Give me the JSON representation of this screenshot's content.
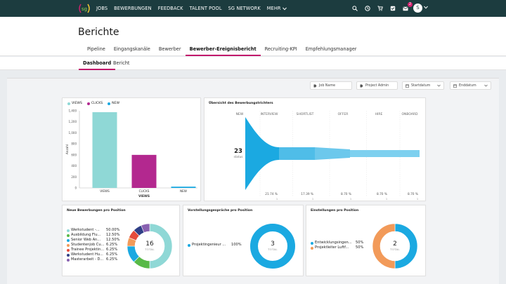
{
  "nav": {
    "links": [
      "JOBS",
      "BEWERBUNGEN",
      "FEEDBACK",
      "TALENT POOL",
      "SG NETWORK",
      "MEHR"
    ],
    "notification_count": "2",
    "avatar_initial": "S"
  },
  "page": {
    "title": "Berichte",
    "tabs": [
      "Pipeline",
      "Eingangskanäle",
      "Bewerber",
      "Bewerber-Ereignisbericht",
      "Recruiting-KPI",
      "Empfehlungsmanager"
    ],
    "active_tab": 3,
    "subtabs": [
      "Dashboard",
      "Bericht"
    ],
    "active_subtab": 0
  },
  "filters": {
    "job_name": "Job Name",
    "project_admin": "Project Admin",
    "start_date": "Startdatum",
    "end_date": "Enddatum"
  },
  "colors": {
    "teal_light": "#8fd8d6",
    "magenta": "#b3288f",
    "cyan": "#1ba9e1",
    "green": "#58b947",
    "orange": "#f29a59",
    "navy": "#2f3f86",
    "red": "#e54b3c",
    "purple": "#8860b0",
    "accent": "#c2186b"
  },
  "chart_data": [
    {
      "type": "bar",
      "title": "",
      "categories": [
        "VIEWS",
        "CLICKS",
        "NEW"
      ],
      "values": [
        1375,
        600,
        23
      ],
      "series_legend": [
        "VIEWS",
        "CLICKS",
        "NEW"
      ],
      "xlabel": "VIEWS",
      "ylabel": "Anzahl",
      "ylim": [
        0,
        1400
      ],
      "yticks": [
        "0",
        "200",
        "400",
        "600",
        "800",
        "1,000",
        "1,200",
        "1,400"
      ],
      "grid": false
    },
    {
      "type": "funnel",
      "title": "Übersicht des Bewerbungstrichters",
      "stages": [
        "NEW",
        "INTERVIEW",
        "SHORTLIST",
        "OFFER",
        "HIRE",
        "ONBOARD"
      ],
      "conversion_labels": [
        "21.74 %",
        "17.39 %",
        "8.70 %",
        "8.70 %",
        "8.70 %"
      ],
      "counts_below": [
        "1",
        "1",
        "1",
        "1",
        "1"
      ],
      "total": "23",
      "total_label": "status"
    },
    {
      "type": "pie",
      "title": "Neue Bewerbungen pro Position",
      "total": "16",
      "total_label": "TOTAL",
      "slices": [
        {
          "label": "Werkstudent -...",
          "value": 50.0,
          "pct": "50.00%"
        },
        {
          "label": "Ausbildung Flu...",
          "value": 12.5,
          "pct": "12.50%"
        },
        {
          "label": "Senior Web An...",
          "value": 12.5,
          "pct": "12.50%"
        },
        {
          "label": "Studentenjob Cu...",
          "value": 6.25,
          "pct": "6.25%"
        },
        {
          "label": "Trainee Projektin...",
          "value": 6.25,
          "pct": "6.25%"
        },
        {
          "label": "Werkstudent Hu...",
          "value": 6.25,
          "pct": "6.25%"
        },
        {
          "label": "Masterarbeit - D...",
          "value": 6.25,
          "pct": "6.25%"
        }
      ]
    },
    {
      "type": "pie",
      "title": "Vorstellungsgespräche pro Position",
      "total": "3",
      "total_label": "TOTAL",
      "slices": [
        {
          "label": "Projektingenieur ...",
          "value": 100,
          "pct": "100%"
        }
      ]
    },
    {
      "type": "pie",
      "title": "Einstellungen pro Position",
      "total": "2",
      "total_label": "TOTAL",
      "slices": [
        {
          "label": "Entwicklungsingen...",
          "value": 50,
          "pct": "50%"
        },
        {
          "label": "Projektleiter Luftf...",
          "value": 50,
          "pct": "50%"
        }
      ]
    }
  ]
}
